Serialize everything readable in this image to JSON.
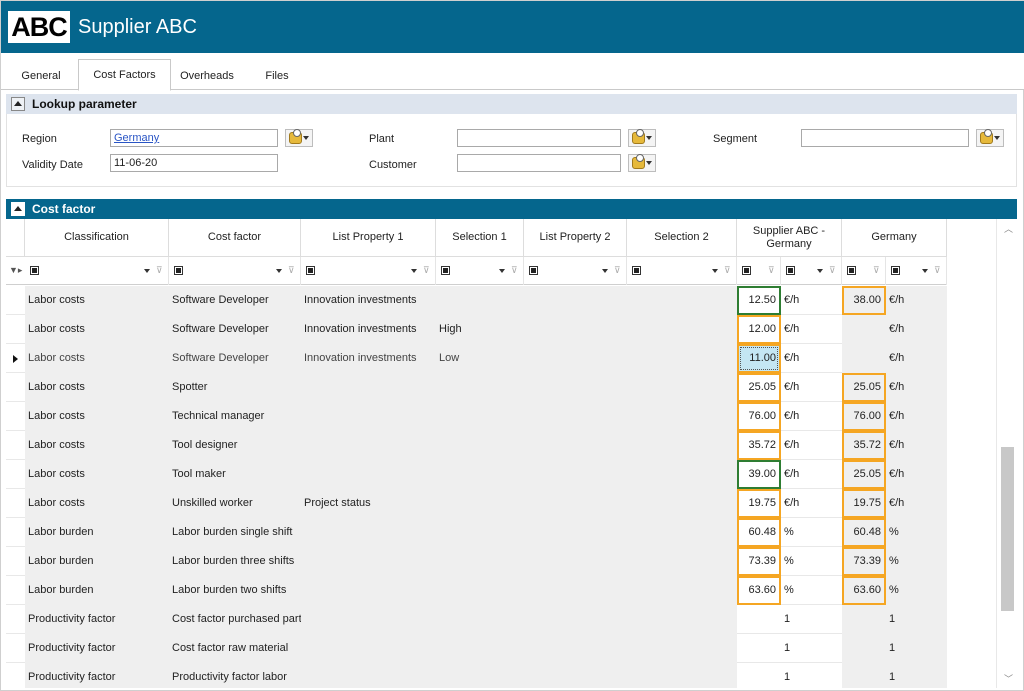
{
  "app": {
    "logo": "ABC",
    "title": "Supplier ABC"
  },
  "tabs": [
    "General",
    "Cost Factors",
    "Overheads",
    "Files"
  ],
  "active_tab": "Cost Factors",
  "lookup": {
    "title": "Lookup parameter",
    "region_label": "Region",
    "region_value": "Germany",
    "validity_label": "Validity Date",
    "validity_value": "11-06-20",
    "plant_label": "Plant",
    "plant_value": "",
    "customer_label": "Customer",
    "customer_value": "",
    "segment_label": "Segment",
    "segment_value": ""
  },
  "costfactor": {
    "title": "Cost factor",
    "columns": [
      "Classification",
      "Cost factor",
      "List Property 1",
      "Selection 1",
      "List Property 2",
      "Selection 2",
      "Supplier ABC - Germany",
      "Germany"
    ],
    "rows": [
      {
        "classification": "Labor costs",
        "factor": "Software Developer",
        "lp1": "Innovation investments",
        "sel1": "",
        "supplier": "12.50",
        "sunit": "€/h",
        "germany": "38.00",
        "gunit": "€/h",
        "current": false
      },
      {
        "classification": "Labor costs",
        "factor": "Software Developer",
        "lp1": "Innovation investments",
        "sel1": "High",
        "supplier": "12.00",
        "sunit": "€/h",
        "germany": "",
        "gunit": "€/h",
        "current": false
      },
      {
        "classification": "Labor costs",
        "factor": "Software Developer",
        "lp1": "Innovation investments",
        "sel1": "Low",
        "supplier": "11.00",
        "sunit": "€/h",
        "germany": "",
        "gunit": "€/h",
        "current": true
      },
      {
        "classification": "Labor costs",
        "factor": "Spotter",
        "lp1": "",
        "sel1": "",
        "supplier": "25.05",
        "sunit": "€/h",
        "germany": "25.05",
        "gunit": "€/h",
        "current": false
      },
      {
        "classification": "Labor costs",
        "factor": "Technical manager",
        "lp1": "",
        "sel1": "",
        "supplier": "76.00",
        "sunit": "€/h",
        "germany": "76.00",
        "gunit": "€/h",
        "current": false
      },
      {
        "classification": "Labor costs",
        "factor": "Tool designer",
        "lp1": "",
        "sel1": "",
        "supplier": "35.72",
        "sunit": "€/h",
        "germany": "35.72",
        "gunit": "€/h",
        "current": false
      },
      {
        "classification": "Labor costs",
        "factor": "Tool maker",
        "lp1": "",
        "sel1": "",
        "supplier": "39.00",
        "sunit": "€/h",
        "germany": "25.05",
        "gunit": "€/h",
        "current": false
      },
      {
        "classification": "Labor costs",
        "factor": "Unskilled worker",
        "lp1": "Project status",
        "sel1": "",
        "supplier": "19.75",
        "sunit": "€/h",
        "germany": "19.75",
        "gunit": "€/h",
        "current": false
      },
      {
        "classification": "Labor burden",
        "factor": "Labor burden single shift",
        "lp1": "",
        "sel1": "",
        "supplier": "60.48",
        "sunit": "%",
        "germany": "60.48",
        "gunit": "%",
        "current": false
      },
      {
        "classification": "Labor burden",
        "factor": "Labor burden three shifts",
        "lp1": "",
        "sel1": "",
        "supplier": "73.39",
        "sunit": "%",
        "germany": "73.39",
        "gunit": "%",
        "current": false
      },
      {
        "classification": "Labor burden",
        "factor": "Labor burden two shifts",
        "lp1": "",
        "sel1": "",
        "supplier": "63.60",
        "sunit": "%",
        "germany": "63.60",
        "gunit": "%",
        "current": false
      },
      {
        "classification": "Productivity factor",
        "factor": "Cost factor purchased part",
        "lp1": "",
        "sel1": "",
        "supplier": "",
        "sunit": "1",
        "germany": "",
        "gunit": "1",
        "current": false
      },
      {
        "classification": "Productivity factor",
        "factor": "Cost factor raw material",
        "lp1": "",
        "sel1": "",
        "supplier": "",
        "sunit": "1",
        "germany": "",
        "gunit": "1",
        "current": false
      },
      {
        "classification": "Productivity factor",
        "factor": "Productivity factor labor",
        "lp1": "",
        "sel1": "",
        "supplier": "",
        "sunit": "1",
        "germany": "",
        "gunit": "1",
        "current": false
      }
    ]
  },
  "colors": {
    "titlebar": "#05668d",
    "highlight_orange": "#f5a623",
    "highlight_green": "#2e7d32",
    "selected_cell": "#c4e6f3"
  }
}
